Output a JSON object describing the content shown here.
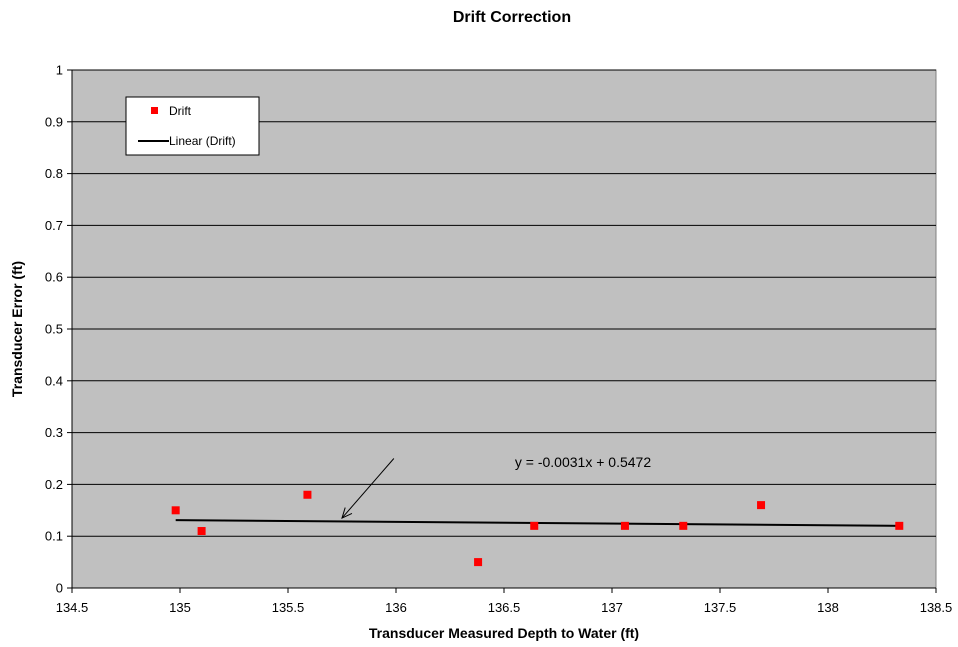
{
  "chart_data": {
    "type": "scatter",
    "title": "Drift Correction",
    "xlabel": "Transducer Measured Depth to Water (ft)",
    "ylabel": "Transducer Error (ft)",
    "xlim": [
      134.5,
      138.5
    ],
    "ylim": [
      0,
      1
    ],
    "xticks": [
      "134.5",
      "135",
      "135.5",
      "136",
      "136.5",
      "137",
      "137.5",
      "138",
      "138.5"
    ],
    "yticks": [
      "0",
      "0.1",
      "0.2",
      "0.3",
      "0.4",
      "0.5",
      "0.6",
      "0.7",
      "0.8",
      "0.9",
      "1"
    ],
    "grid": true,
    "plot_background": "#C0C0C0",
    "legend_position": "top-left",
    "series": [
      {
        "name": "Drift",
        "color": "#FF0000",
        "marker": "square",
        "x": [
          134.98,
          135.1,
          135.59,
          136.38,
          136.64,
          137.06,
          137.33,
          137.69,
          138.33
        ],
        "y": [
          0.15,
          0.11,
          0.18,
          0.05,
          0.12,
          0.12,
          0.12,
          0.16,
          0.12
        ]
      }
    ],
    "trendline": {
      "name": "Linear (Drift)",
      "color": "#000000",
      "slope": -0.0031,
      "intercept": 0.5472,
      "x_range": [
        134.98,
        138.33
      ],
      "y_endpoints": [
        0.131,
        0.12
      ],
      "equation_label": "y = -0.0031x + 0.5472"
    },
    "annotation_arrow": {
      "from": [
        135.99,
        0.25
      ],
      "to": [
        135.75,
        0.135
      ]
    }
  }
}
